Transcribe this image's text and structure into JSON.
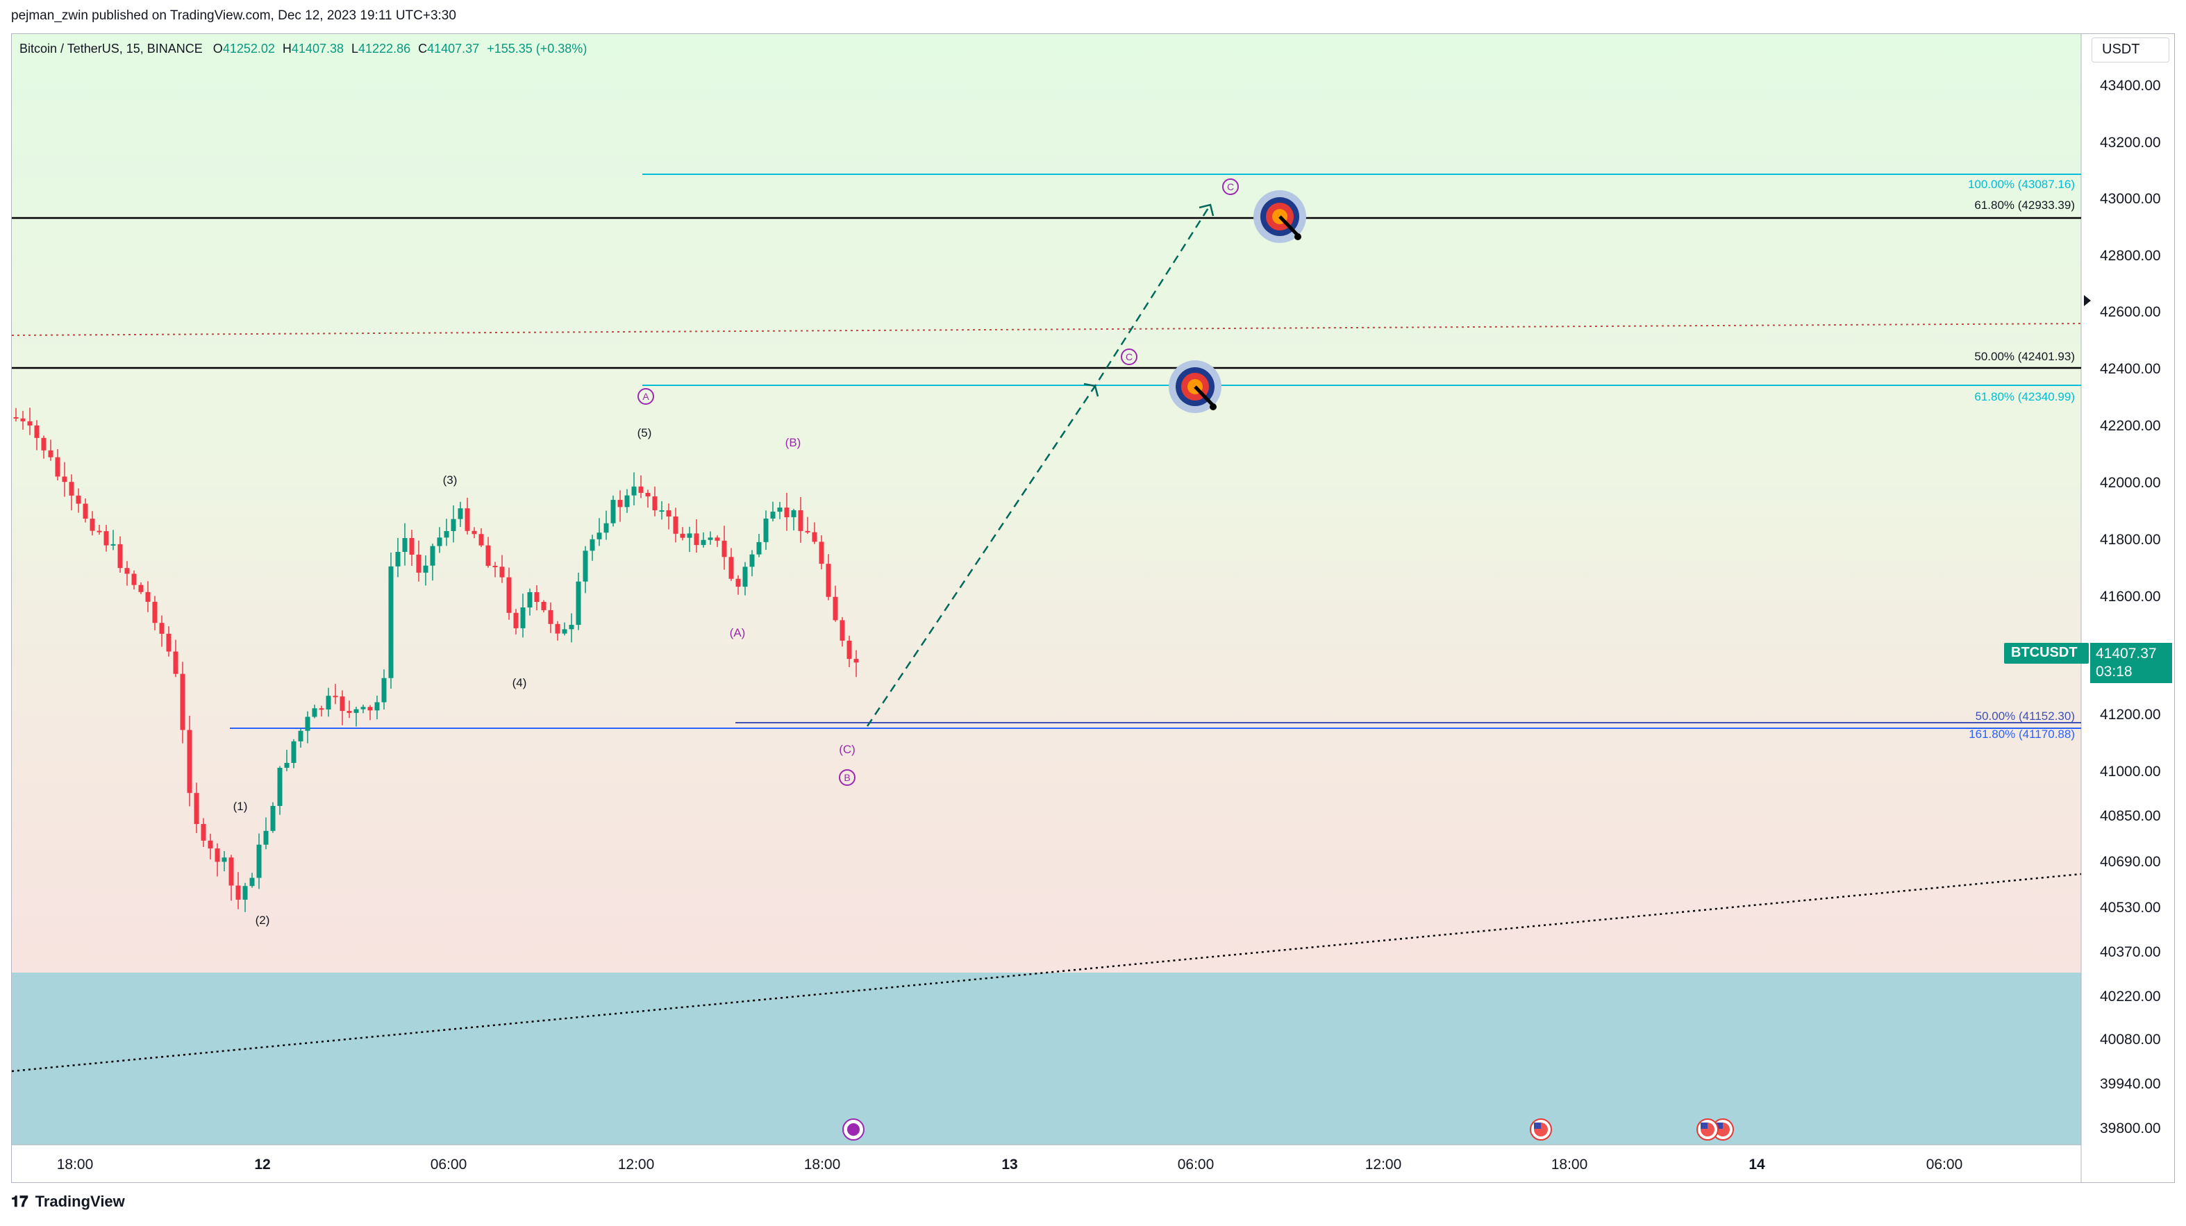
{
  "header": {
    "published_text": "pejman_zwin published on TradingView.com, Dec 12, 2023 19:11 UTC+3:30"
  },
  "legend": {
    "symbol": "Bitcoin / TetherUS, 15, BINANCE",
    "open_label": "O",
    "open": "41252.02",
    "high_label": "H",
    "high": "41407.38",
    "low_label": "L",
    "low": "41222.86",
    "close_label": "C",
    "close": "41407.37",
    "change": "+155.35 (+0.38%)"
  },
  "price_axis": {
    "currency": "USDT",
    "ticks": [
      "43400.00",
      "43200.00",
      "43000.00",
      "42800.00",
      "42600.00",
      "42400.00",
      "42200.00",
      "42000.00",
      "41800.00",
      "41600.00",
      "41200.00",
      "41000.00",
      "40850.00",
      "40690.00",
      "40530.00",
      "40370.00",
      "40220.00",
      "40080.00",
      "39940.00",
      "39800.00"
    ]
  },
  "time_axis": {
    "ticks": [
      "18:00",
      "12",
      "06:00",
      "12:00",
      "18:00",
      "13",
      "06:00",
      "12:00",
      "18:00",
      "14",
      "06:00"
    ]
  },
  "last_price": {
    "symbol": "BTCUSDT",
    "price": "41407.37",
    "countdown": "03:18"
  },
  "fib_labels": {
    "upper_100": "100.00% (43087.16)",
    "upper_618": "61.80% (42933.39)",
    "mid_50": "50.00% (42401.93)",
    "mid_618": "61.80% (42340.99)",
    "low_50": "50.00% (41152.30)",
    "low_1618": "161.80% (41170.88)"
  },
  "wave_labels": {
    "w1": "(1)",
    "w2": "(2)",
    "w3": "(3)",
    "w4": "(4)",
    "w5": "(5)",
    "a_small": "(A)",
    "b_small": "(B)",
    "c_small": "(C)",
    "A": "A",
    "B": "B",
    "C_upper": "C",
    "C_mid": "C"
  },
  "footer": {
    "brand": "TradingView"
  },
  "colors": {
    "up": "#089981",
    "down": "#f23645",
    "fib_cyan": "#00bcd4",
    "fib_blue": "#2962ff",
    "wave_purple": "#9c27b0",
    "bg_green": "#e3fae3",
    "bg_red": "#f9dede",
    "zone_teal": "#a9d4dc"
  },
  "chart_data": {
    "type": "candlestick",
    "symbol": "BTCUSDT",
    "interval": "15",
    "exchange": "BINANCE",
    "y_range": [
      39800,
      43500
    ],
    "x_labels": [
      "18:00",
      "12",
      "06:00",
      "12:00",
      "18:00",
      "13",
      "06:00",
      "12:00",
      "18:00",
      "14",
      "06:00"
    ],
    "horizontal_levels": [
      {
        "label": "100.00% (43087.16)",
        "value": 43087.16
      },
      {
        "label": "61.80% (42933.39)",
        "value": 42933.39
      },
      {
        "label": "50.00% (42401.93)",
        "value": 42401.93
      },
      {
        "label": "61.80% (42340.99)",
        "value": 42340.99
      },
      {
        "label": "50.00% (41152.30)",
        "value": 41152.3
      },
      {
        "label": "161.80% (41170.88)",
        "value": 41170.88
      }
    ],
    "targets": [
      42933.39,
      42340.99
    ],
    "last_price": 41407.37
  }
}
